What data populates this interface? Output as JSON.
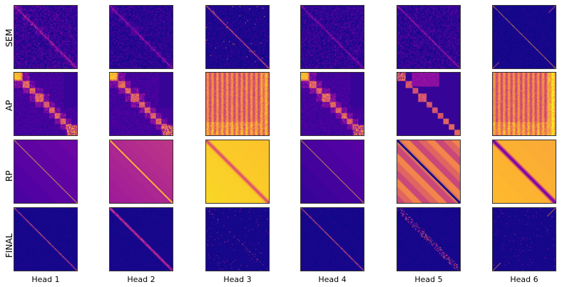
{
  "figure": {
    "rows": [
      {
        "id": "sem",
        "label": "SEM"
      },
      {
        "id": "ap",
        "label": "AP"
      },
      {
        "id": "rp",
        "label": "RP"
      },
      {
        "id": "final",
        "label": "FINAL"
      }
    ],
    "columns": [
      {
        "id": "h1",
        "label": "Head 1"
      },
      {
        "id": "h2",
        "label": "Head 2"
      },
      {
        "id": "h3",
        "label": "Head 3"
      },
      {
        "id": "h4",
        "label": "Head 4"
      },
      {
        "id": "h5",
        "label": "Head 5"
      },
      {
        "id": "h6",
        "label": "Head 6"
      }
    ],
    "colormap": "plasma"
  }
}
